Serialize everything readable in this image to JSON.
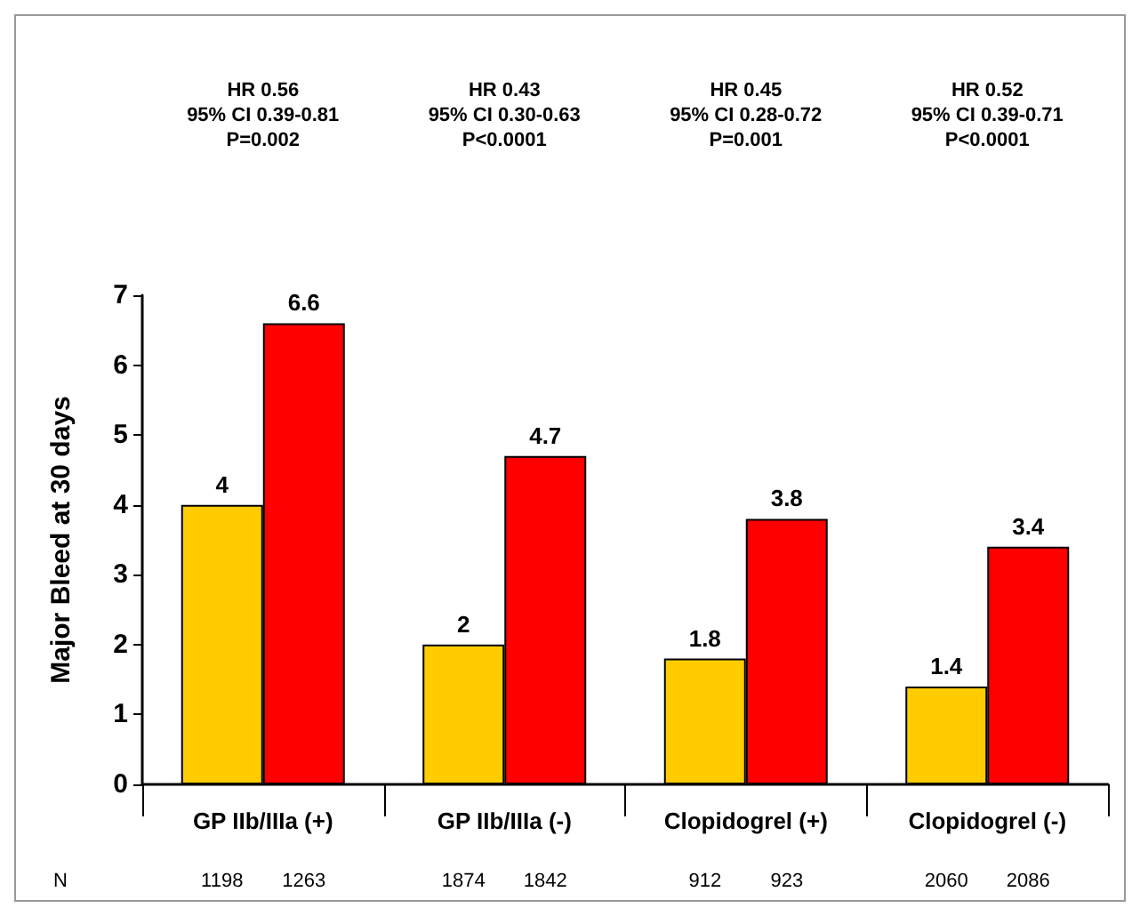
{
  "chart_data": {
    "type": "bar",
    "ylabel": "Major Bleed at 30 days",
    "categories": [
      "GP IIb/IIIa (+)",
      "GP IIb/IIIa (-)",
      "Clopidogrel (+)",
      "Clopidogrel (-)"
    ],
    "series": [
      {
        "color": "#ffcc00",
        "values": [
          4,
          2,
          1.8,
          1.4
        ]
      },
      {
        "color": "#ff0000",
        "values": [
          6.6,
          4.7,
          3.8,
          3.4
        ]
      }
    ],
    "ylim": [
      0,
      7
    ],
    "yticks": [
      0,
      1,
      2,
      3,
      4,
      5,
      6,
      7
    ],
    "grid": false,
    "data_labels": true,
    "annotations": [
      "HR 0.56\n95% CI 0.39-0.81\nP=0.002",
      "HR 0.43\n95% CI 0.30-0.63\nP<0.0001",
      "HR 0.45\n95% CI 0.28-0.72\nP=0.001",
      "HR 0.52\n95% CI 0.39-0.71\nP<0.0001",
      "N",
      "1198",
      "1263",
      "1874",
      "1842",
      "912",
      "923",
      "2060",
      "2086"
    ]
  }
}
